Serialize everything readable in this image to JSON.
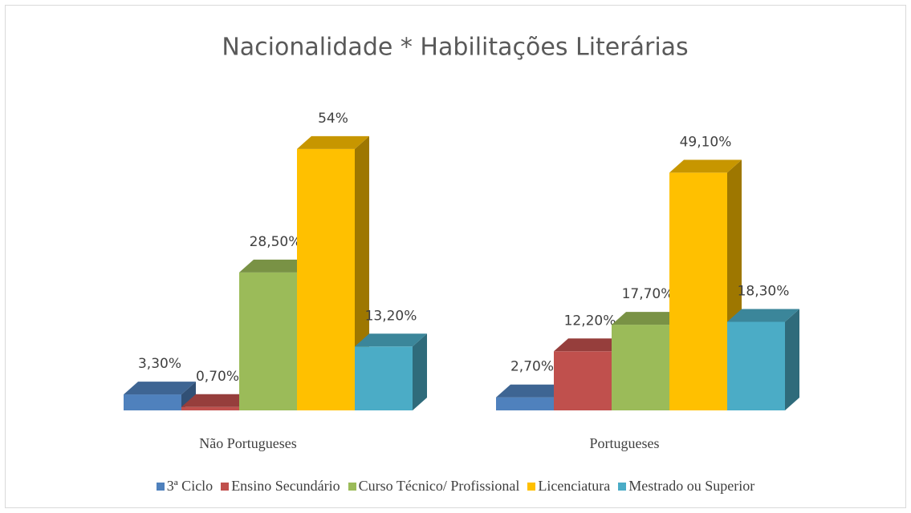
{
  "chart_data": {
    "type": "bar3d",
    "title": "Nacionalidade * Habilitações Literárias",
    "categories": [
      "Não Portugueses",
      "Portugueses"
    ],
    "series": [
      {
        "name": "3ª Ciclo",
        "color": "#4f81bd",
        "values": [
          3.3,
          2.7
        ],
        "value_labels": [
          "3,30%",
          "2,70%"
        ]
      },
      {
        "name": "Ensino Secundário",
        "color": "#c0504d",
        "values": [
          0.7,
          12.2
        ],
        "value_labels": [
          "0,70%",
          "12,20%"
        ]
      },
      {
        "name": "Curso Técnico/ Profissional",
        "color": "#9bbb59",
        "values": [
          28.5,
          17.7
        ],
        "value_labels": [
          "28,50%",
          "17,70%"
        ]
      },
      {
        "name": "Licenciatura",
        "color": "#ffc000",
        "values": [
          54,
          49.1
        ],
        "value_labels": [
          "54%",
          "49,10%"
        ]
      },
      {
        "name": "Mestrado ou Superior",
        "color": "#4bacc6",
        "values": [
          13.2,
          18.3
        ],
        "value_labels": [
          "13,20%",
          "18,30%"
        ]
      }
    ]
  }
}
